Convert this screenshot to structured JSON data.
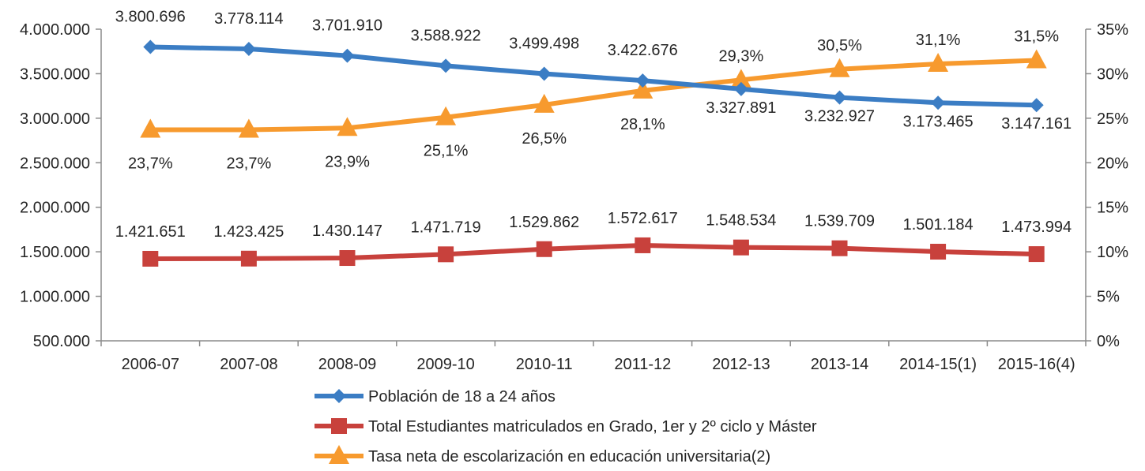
{
  "chart_data": {
    "type": "line",
    "categories": [
      "2006-07",
      "2007-08",
      "2008-09",
      "2009-10",
      "2010-11",
      "2011-12",
      "2012-13",
      "2013-14",
      "2014-15(1)",
      "2015-16(4)"
    ],
    "left_axis": {
      "ylim": [
        500000,
        4000000
      ],
      "ticks": [
        500000,
        1000000,
        1500000,
        2000000,
        2500000,
        3000000,
        3500000,
        4000000
      ],
      "tick_labels": [
        "500.000",
        "1.000.000",
        "1.500.000",
        "2.000.000",
        "2.500.000",
        "3.000.000",
        "3.500.000",
        "4.000.000"
      ]
    },
    "right_axis": {
      "ylim": [
        0,
        35
      ],
      "ticks": [
        0,
        5,
        10,
        15,
        20,
        25,
        30,
        35
      ],
      "tick_labels": [
        "0%",
        "5%",
        "10%",
        "15%",
        "20%",
        "25%",
        "30%",
        "35%"
      ]
    },
    "series": [
      {
        "name": "Población de 18 a 24 años",
        "axis": "left",
        "color": "#3b7dc4",
        "marker": "diamond",
        "values": [
          3800696,
          3778114,
          3701910,
          3588922,
          3499498,
          3422676,
          3327891,
          3232927,
          3173465,
          3147161
        ],
        "labels": [
          "3.800.696",
          "3.778.114",
          "3.701.910",
          "3.588.922",
          "3.499.498",
          "3.422.676",
          "3.327.891",
          "3.232.927",
          "3.173.465",
          "3.147.161"
        ]
      },
      {
        "name": "Total Estudiantes matriculados en Grado, 1er y 2º ciclo y Máster",
        "axis": "left",
        "color": "#c8413c",
        "marker": "square",
        "values": [
          1421651,
          1423425,
          1430147,
          1471719,
          1529862,
          1572617,
          1548534,
          1539709,
          1501184,
          1473994
        ],
        "labels": [
          "1.421.651",
          "1.423.425",
          "1.430.147",
          "1.471.719",
          "1.529.862",
          "1.572.617",
          "1.548.534",
          "1.539.709",
          "1.501.184",
          "1.473.994"
        ]
      },
      {
        "name": "Tasa neta de escolarización en educación universitaria(2)",
        "axis": "right",
        "color": "#f79a2e",
        "marker": "triangle",
        "values": [
          23.7,
          23.7,
          23.9,
          25.1,
          26.5,
          28.1,
          29.3,
          30.5,
          31.1,
          31.5
        ],
        "labels": [
          "23,7%",
          "23,7%",
          "23,9%",
          "25,1%",
          "26,5%",
          "28,1%",
          "29,3%",
          "30,5%",
          "31,1%",
          "31,5%"
        ]
      }
    ],
    "grid": false,
    "legend_position": "bottom"
  }
}
